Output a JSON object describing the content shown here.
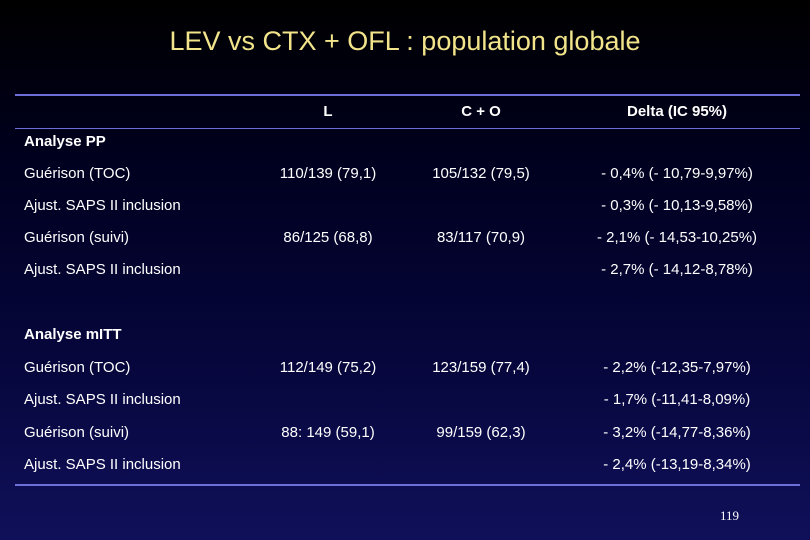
{
  "title": "LEV vs CTX + OFL : population globale",
  "columns": [
    "L",
    "C + O",
    "Delta (IC 95%)"
  ],
  "sections": [
    {
      "title": "Analyse PP",
      "rows": [
        {
          "label": "Guérison (TOC)",
          "l": "110/139 (79,1)",
          "co": "105/132 (79,5)",
          "delta": "- 0,4% (- 10,79-9,97%)"
        },
        {
          "label": "Ajust. SAPS II inclusion",
          "l": "",
          "co": "",
          "delta": "- 0,3% (- 10,13-9,58%)"
        },
        {
          "label": "Guérison (suivi)",
          "l": "86/125 (68,8)",
          "co": "83/117 (70,9)",
          "delta": "- 2,1% (- 14,53-10,25%)"
        },
        {
          "label": "Ajust. SAPS II inclusion",
          "l": "",
          "co": "",
          "delta": "- 2,7% (- 14,12-8,78%)"
        }
      ]
    },
    {
      "title": "Analyse mITT",
      "rows": [
        {
          "label": "Guérison (TOC)",
          "l": "112/149 (75,2)",
          "co": "123/159 (77,4)",
          "delta": "- 2,2% (-12,35-7,97%)"
        },
        {
          "label": "Ajust. SAPS II inclusion",
          "l": "",
          "co": "",
          "delta": "- 1,7% (-11,41-8,09%)"
        },
        {
          "label": "Guérison (suivi)",
          "l": "88: 149 (59,1)",
          "co": "99/159 (62,3)",
          "delta": "- 3,2% (-14,77-8,36%)"
        },
        {
          "label": "Ajust. SAPS II inclusion",
          "l": "",
          "co": "",
          "delta": "- 2,4% (-13,19-8,34%)"
        }
      ]
    }
  ],
  "page_number": "119",
  "colors": {
    "title": "#f2e48a",
    "text": "#ffffff",
    "rule": "#6e6ed8"
  }
}
